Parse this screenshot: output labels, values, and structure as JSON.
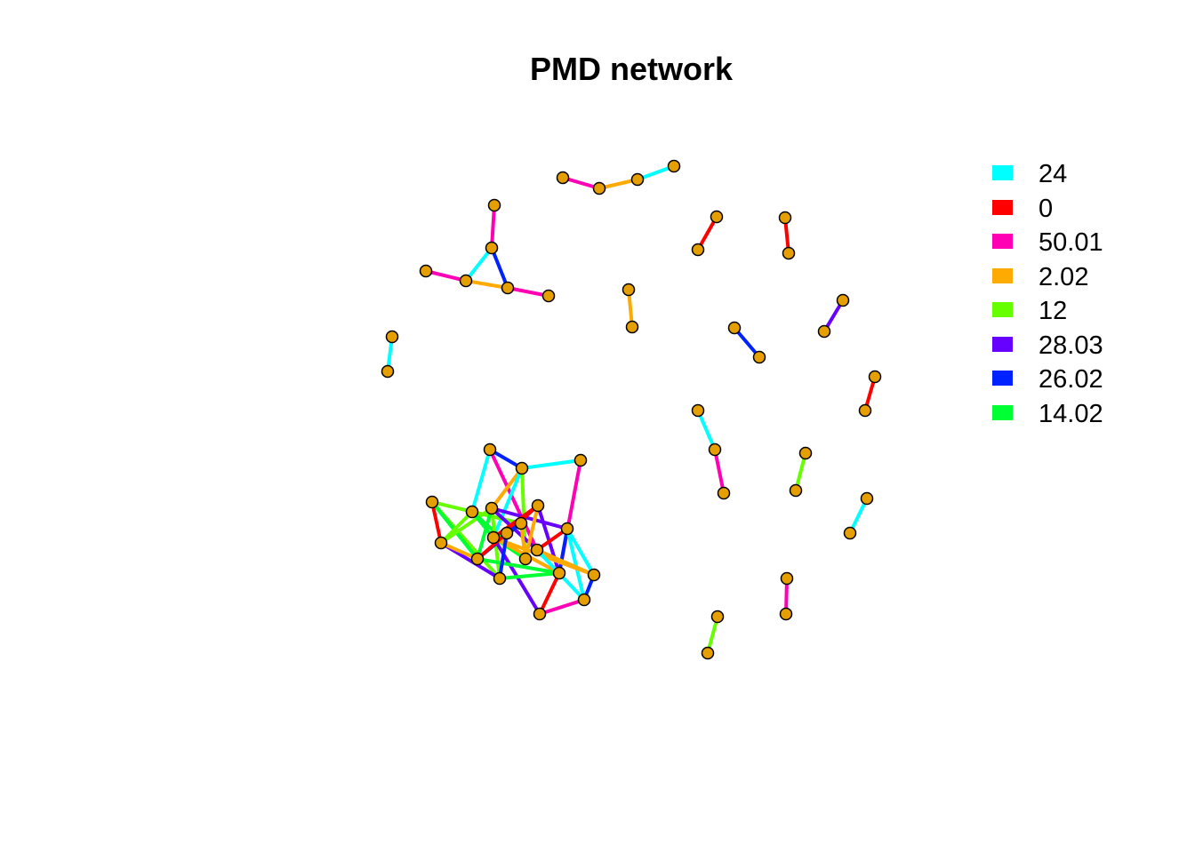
{
  "title": "PMD network",
  "legend": [
    {
      "label": "24",
      "color": "#00ffff"
    },
    {
      "label": "0",
      "color": "#ff0000"
    },
    {
      "label": "50.01",
      "color": "#ff00b4"
    },
    {
      "label": "2.02",
      "color": "#ffaa00"
    },
    {
      "label": "12",
      "color": "#66ff00"
    },
    {
      "label": "28.03",
      "color": "#6600ff"
    },
    {
      "label": "26.02",
      "color": "#0022ff"
    },
    {
      "label": "14.02",
      "color": "#00ff33"
    }
  ],
  "node_color": "#E69F00",
  "node_border_color": "#000000",
  "edge_groups": {
    "24": "#00ffff",
    "0": "#ff0000",
    "50.01": "#ff00b4",
    "2.02": "#ffaa00",
    "12": "#66ff00",
    "28.03": "#6600ff",
    "26.02": "#0022ff",
    "14.02": "#00ff33"
  }
}
